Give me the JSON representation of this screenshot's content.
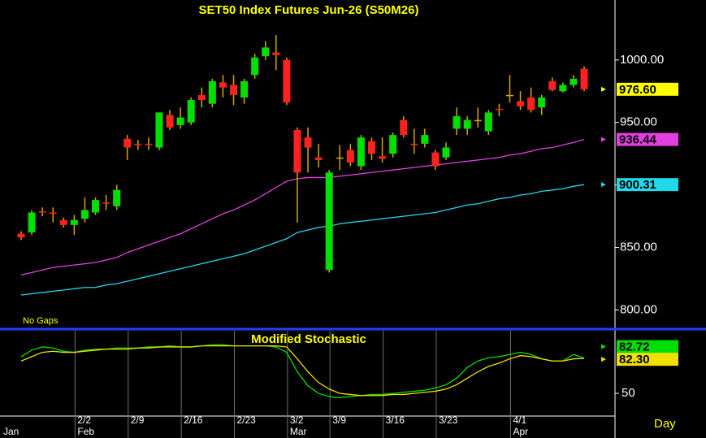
{
  "chart_data": [
    {
      "type": "candlestick",
      "title": "SET50 Index Futures Jun-26 (S50M26)",
      "note": "No Gaps",
      "ylim": [
        786,
        1048
      ],
      "yticks": [
        {
          "value": 800,
          "label": "800.00"
        },
        {
          "value": 850,
          "label": "850.00"
        },
        {
          "value": 900,
          "label": "900.00"
        },
        {
          "value": 950,
          "label": "950.00"
        },
        {
          "value": 1000,
          "label": "1000.00"
        }
      ],
      "up_color": "#00e000",
      "down_color": "#ff2020",
      "wick_color": "#d8a800",
      "open": [
        861,
        862,
        879,
        878,
        872,
        868,
        873,
        878,
        886,
        883,
        937,
        933,
        933,
        930,
        956,
        948,
        950,
        972,
        965,
        982,
        980,
        970,
        988,
        1003,
        1006,
        1000,
        944,
        938,
        922,
        832,
        922,
        928,
        915,
        935,
        923,
        925,
        952,
        933,
        933,
        926,
        922,
        945,
        945,
        952,
        943,
        961,
        972,
        967,
        970,
        962,
        983,
        975,
        980,
        993
      ],
      "high": [
        863,
        880,
        882,
        882,
        874,
        876,
        890,
        890,
        892,
        900,
        940,
        936,
        938,
        958,
        960,
        962,
        970,
        978,
        985,
        988,
        988,
        985,
        1005,
        1015,
        1020,
        1002,
        946,
        946,
        933,
        912,
        932,
        933,
        940,
        938,
        938,
        942,
        955,
        945,
        945,
        928,
        934,
        962,
        955,
        962,
        960,
        965,
        988,
        975,
        978,
        972,
        986,
        982,
        988,
        995
      ],
      "low": [
        856,
        860,
        875,
        870,
        866,
        860,
        870,
        876,
        880,
        880,
        920,
        928,
        928,
        928,
        944,
        945,
        948,
        962,
        962,
        970,
        964,
        965,
        985,
        1000,
        992,
        964,
        870,
        910,
        914,
        830,
        912,
        915,
        912,
        920,
        918,
        922,
        938,
        925,
        930,
        912,
        920,
        940,
        940,
        946,
        940,
        955,
        966,
        960,
        958,
        956,
        975,
        974,
        978,
        975
      ],
      "close": [
        858,
        878,
        878,
        877,
        868,
        872,
        880,
        888,
        885,
        896,
        930,
        932,
        932,
        958,
        946,
        954,
        968,
        968,
        983,
        978,
        972,
        983,
        1002,
        1010,
        1004,
        966,
        910,
        930,
        920,
        910,
        922,
        918,
        938,
        925,
        921,
        940,
        940,
        932,
        940,
        915,
        930,
        955,
        952,
        952,
        958,
        960,
        972,
        963,
        960,
        970,
        976,
        980,
        985,
        976.6
      ],
      "last_label": "976.60",
      "last_color": "#ffff00",
      "lines": [
        {
          "color": "#e040e0",
          "last_label": "936.44",
          "values": [
            828,
            830,
            832,
            834,
            835,
            836,
            837,
            838,
            840,
            842,
            846,
            849,
            852,
            855,
            858,
            861,
            865,
            869,
            873,
            877,
            880,
            884,
            888,
            893,
            898,
            903,
            905,
            906,
            906,
            906,
            907,
            908,
            909,
            910,
            911,
            912,
            913,
            914,
            915,
            916,
            917,
            918,
            919,
            920,
            921,
            922,
            924,
            925,
            927,
            929,
            930,
            932,
            934,
            936.44
          ]
        },
        {
          "color": "#20d8e8",
          "last_label": "900.31",
          "values": [
            812,
            813,
            814,
            815,
            816,
            817,
            818,
            818,
            820,
            821,
            823,
            825,
            827,
            829,
            831,
            833,
            835,
            837,
            839,
            841,
            843,
            845,
            848,
            851,
            854,
            857,
            862,
            864,
            866,
            867,
            869,
            870,
            871,
            872,
            873,
            874,
            875,
            876,
            877,
            878,
            880,
            882,
            884,
            885,
            887,
            889,
            890,
            892,
            893,
            895,
            896,
            897,
            899,
            900.31
          ]
        }
      ]
    },
    {
      "type": "line",
      "title": "Modified Stochastic",
      "x_axis_label": "Day",
      "ylim": [
        29,
        108
      ],
      "yticks": [
        50
      ],
      "categories": [
        "",
        null,
        null,
        null,
        null,
        "2/2",
        null,
        null,
        null,
        null,
        "2/9",
        null,
        null,
        null,
        null,
        "2/16",
        null,
        null,
        null,
        null,
        "2/23",
        null,
        null,
        null,
        null,
        "3/2",
        null,
        null,
        null,
        "3/9",
        null,
        null,
        null,
        null,
        "3/16",
        null,
        null,
        null,
        null,
        "3/23",
        null,
        null,
        null,
        null,
        null,
        null,
        "4/1",
        null,
        null,
        null,
        null,
        null,
        null,
        null
      ],
      "months": [
        "Jan",
        null,
        null,
        null,
        null,
        "Feb",
        null,
        null,
        null,
        null,
        null,
        null,
        null,
        null,
        null,
        null,
        null,
        null,
        null,
        null,
        null,
        null,
        null,
        null,
        null,
        "Mar",
        null,
        null,
        null,
        null,
        null,
        null,
        null,
        null,
        null,
        null,
        null,
        null,
        null,
        null,
        null,
        null,
        null,
        null,
        null,
        null,
        "Apr",
        null,
        null,
        null,
        null,
        null,
        null,
        null
      ],
      "series": [
        {
          "color": "#00e000",
          "last_label": "82.72",
          "values": [
            84,
            90,
            93,
            92,
            89,
            88,
            90,
            91,
            91,
            92,
            92,
            92,
            93,
            93,
            94,
            93,
            93,
            94,
            95,
            95,
            94,
            94,
            94,
            94,
            93,
            88,
            70,
            57,
            50,
            47,
            46,
            47,
            48,
            49,
            49,
            50,
            51,
            52,
            53,
            55,
            58,
            64,
            74,
            80,
            83,
            84,
            86,
            88,
            86,
            82,
            80,
            80,
            86,
            82.72
          ]
        },
        {
          "color": "#f0e000",
          "last_label": "82.30",
          "values": [
            80,
            84,
            88,
            89,
            88,
            88,
            89,
            90,
            91,
            91,
            91,
            92,
            92,
            93,
            93,
            93,
            93,
            94,
            94,
            94,
            94,
            94,
            94,
            94,
            94,
            93,
            82,
            70,
            60,
            54,
            50,
            49,
            48,
            48,
            48,
            49,
            49,
            50,
            51,
            52,
            54,
            58,
            64,
            70,
            75,
            78,
            82,
            85,
            84,
            82,
            80,
            80,
            82,
            82.3
          ]
        }
      ]
    }
  ]
}
